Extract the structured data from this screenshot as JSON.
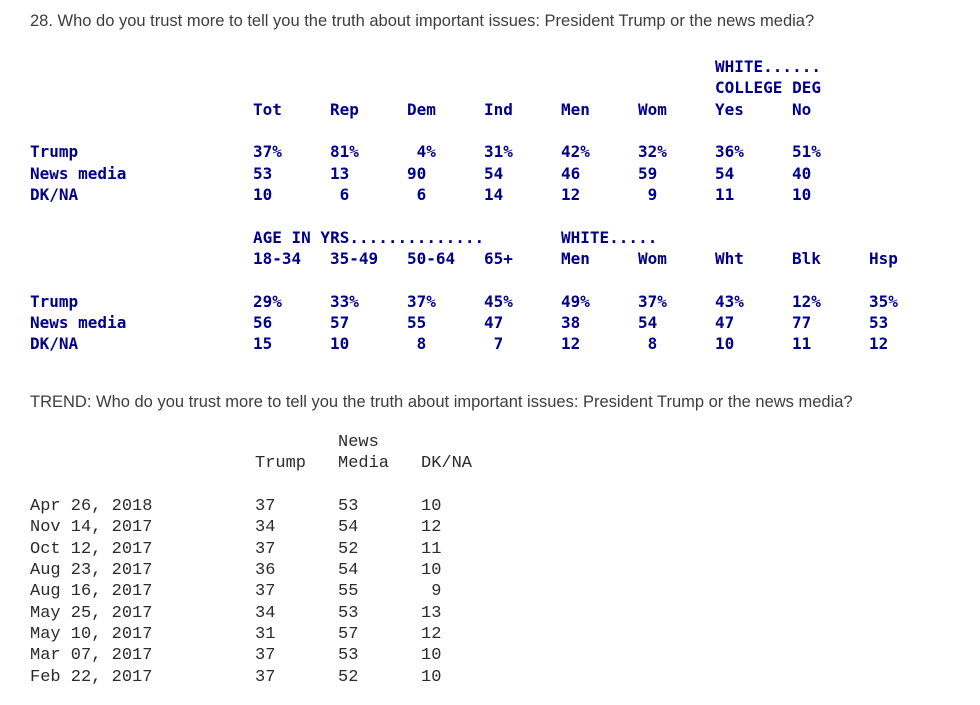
{
  "crosstab": {
    "question": "28. Who do you trust more to tell you the truth about important issues: President Trump or the news media?",
    "text_color": "#00008B",
    "block1": {
      "group_line1": "WHITE......",
      "group_line2": "COLLEGE DEG",
      "columns": [
        "Tot",
        "Rep",
        "Dem",
        "Ind",
        "Men",
        "Wom",
        "Yes",
        "No"
      ],
      "rows": [
        {
          "label": "Trump",
          "suffix": "%",
          "values": [
            "37",
            "81",
            "4",
            "31",
            "42",
            "32",
            "36",
            "51"
          ]
        },
        {
          "label": "News media",
          "suffix": "",
          "values": [
            "53",
            "13",
            "90",
            "54",
            "46",
            "59",
            "54",
            "40"
          ]
        },
        {
          "label": "DK/NA",
          "suffix": "",
          "values": [
            "10",
            "6",
            "6",
            "14",
            "12",
            "9",
            "11",
            "10"
          ]
        }
      ]
    },
    "block2": {
      "group_age": "AGE IN YRS..............",
      "group_white": "WHITE.....",
      "columns": [
        "18-34",
        "35-49",
        "50-64",
        "65+",
        "Men",
        "Wom",
        "Wht",
        "Blk",
        "Hsp"
      ],
      "rows": [
        {
          "label": "Trump",
          "suffix": "%",
          "values": [
            "29",
            "33",
            "37",
            "45",
            "49",
            "37",
            "43",
            "12",
            "35"
          ]
        },
        {
          "label": "News media",
          "suffix": "",
          "values": [
            "56",
            "57",
            "55",
            "47",
            "38",
            "54",
            "47",
            "77",
            "53"
          ]
        },
        {
          "label": "DK/NA",
          "suffix": "",
          "values": [
            "15",
            "10",
            "8",
            "7",
            "12",
            "8",
            "10",
            "11",
            "12"
          ]
        }
      ]
    }
  },
  "trend": {
    "question": "TREND: Who do you trust more to tell you the truth about important issues: President Trump or the news media?",
    "header_top": "News",
    "columns": [
      "Trump",
      "Media",
      "DK/NA"
    ],
    "rows": [
      {
        "date": "Apr 26, 2018",
        "values": [
          "37",
          "53",
          "10"
        ]
      },
      {
        "date": "Nov 14, 2017",
        "values": [
          "34",
          "54",
          "12"
        ]
      },
      {
        "date": "Oct 12, 2017",
        "values": [
          "37",
          "52",
          "11"
        ]
      },
      {
        "date": "Aug 23, 2017",
        "values": [
          "36",
          "54",
          "10"
        ]
      },
      {
        "date": "Aug 16, 2017",
        "values": [
          "37",
          "55",
          "9"
        ]
      },
      {
        "date": "May 25, 2017",
        "values": [
          "34",
          "53",
          "13"
        ]
      },
      {
        "date": "May 10, 2017",
        "values": [
          "31",
          "57",
          "12"
        ]
      },
      {
        "date": "Mar 07, 2017",
        "values": [
          "37",
          "53",
          "10"
        ]
      },
      {
        "date": "Feb 22, 2017",
        "values": [
          "37",
          "52",
          "10"
        ]
      }
    ]
  }
}
